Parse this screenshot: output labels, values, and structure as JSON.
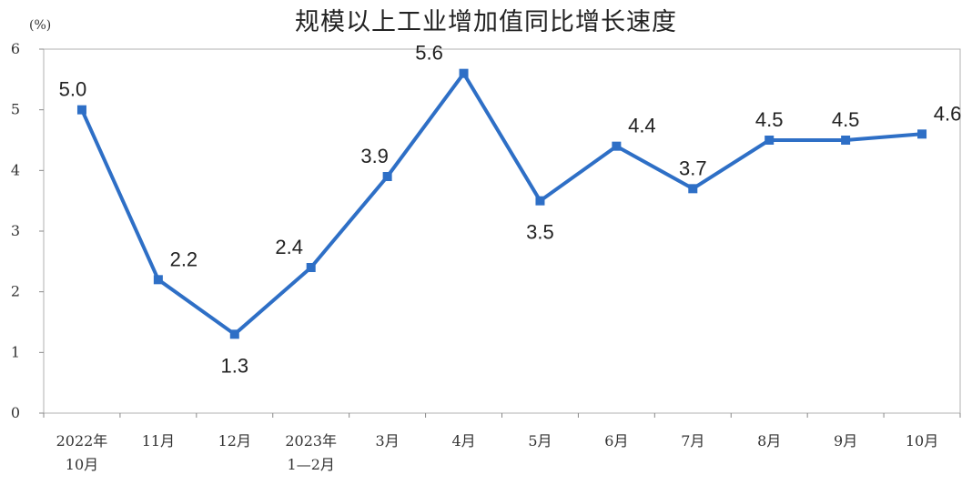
{
  "chart_data": {
    "type": "line",
    "title": "规模以上工业增加值同比增长速度",
    "ylabel": "(%)",
    "xlabel": "",
    "ylim": [
      0,
      6
    ],
    "yticks": [
      "0",
      "1",
      "2",
      "3",
      "4",
      "5",
      "6"
    ],
    "categories": [
      [
        "2022年",
        "10月"
      ],
      [
        "11月"
      ],
      [
        "12月"
      ],
      [
        "2023年",
        "1—2月"
      ],
      [
        "3月"
      ],
      [
        "4月"
      ],
      [
        "5月"
      ],
      [
        "6月"
      ],
      [
        "7月"
      ],
      [
        "8月"
      ],
      [
        "9月"
      ],
      [
        "10月"
      ]
    ],
    "values": [
      5.0,
      2.2,
      1.3,
      2.4,
      3.9,
      5.6,
      3.5,
      4.4,
      3.7,
      4.5,
      4.5,
      4.6
    ],
    "data_labels": [
      "5.0",
      "2.2",
      "1.3",
      "2.4",
      "3.9",
      "5.6",
      "3.5",
      "4.4",
      "3.7",
      "4.5",
      "4.5",
      "4.6"
    ],
    "label_positions": [
      "above",
      "above",
      "below",
      "above",
      "above",
      "above",
      "below",
      "above",
      "above",
      "above",
      "above",
      "above"
    ],
    "line_color": "#2e6fc6",
    "grid": false,
    "legend": "none"
  }
}
